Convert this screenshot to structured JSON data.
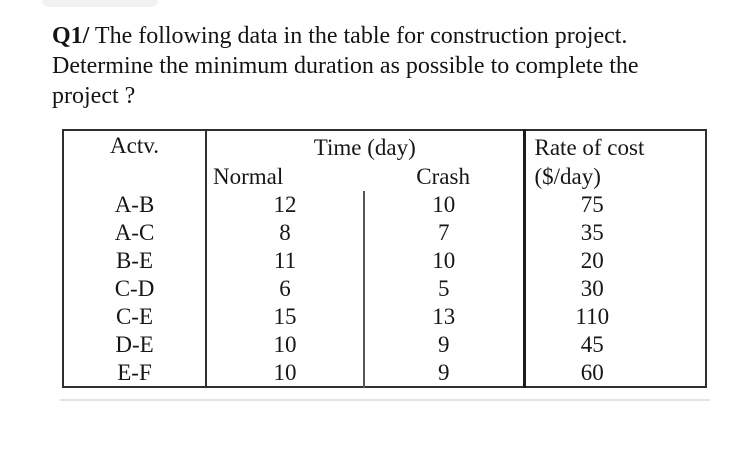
{
  "question": {
    "q_label": "Q1/",
    "line1_rest": " The following data in the table for construction project.",
    "line2": "Determine the minimum duration as possible to complete the",
    "line3": "project ?"
  },
  "table": {
    "headers": {
      "activity": "Actv.",
      "time_group": "Time (day)",
      "normal": "Normal",
      "crash": "Crash",
      "rate_line1": "Rate of cost",
      "rate_line2": "($/day)"
    },
    "rows": [
      {
        "activity": "A-B",
        "normal": "12",
        "crash": "10",
        "rate": "75"
      },
      {
        "activity": "A-C",
        "normal": "8",
        "crash": "7",
        "rate": "35"
      },
      {
        "activity": "B-E",
        "normal": "11",
        "crash": "10",
        "rate": "20"
      },
      {
        "activity": "C-D",
        "normal": "6",
        "crash": "5",
        "rate": "30"
      },
      {
        "activity": "C-E",
        "normal": "15",
        "crash": "13",
        "rate": "110"
      },
      {
        "activity": "D-E",
        "normal": "10",
        "crash": "9",
        "rate": "45"
      },
      {
        "activity": "E-F",
        "normal": "10",
        "crash": "9",
        "rate": "60"
      }
    ]
  }
}
